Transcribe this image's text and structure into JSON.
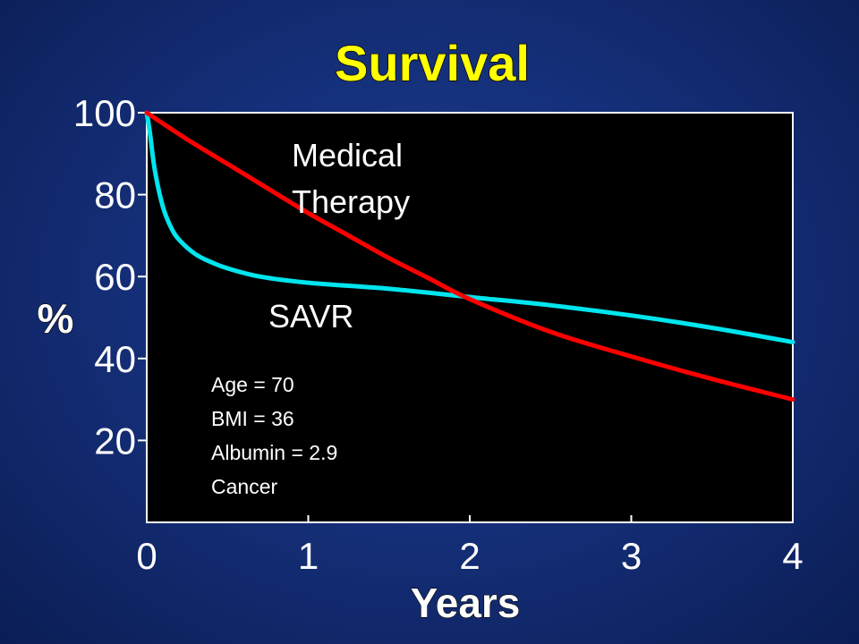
{
  "chart_data": {
    "type": "line",
    "title": "Survival",
    "xlabel": "Years",
    "ylabel": "%",
    "xlim": [
      0,
      4
    ],
    "ylim": [
      0,
      100
    ],
    "x_ticks": [
      "0",
      "1",
      "2",
      "3",
      "4"
    ],
    "y_ticks": [
      "100",
      "80",
      "60",
      "40",
      "20"
    ],
    "grid": false,
    "background": "#000000",
    "series": [
      {
        "name": "Medical Therapy",
        "color": "#ff0000",
        "x": [
          0,
          0.25,
          0.5,
          0.75,
          1,
          1.25,
          1.5,
          1.75,
          2,
          2.5,
          3,
          3.5,
          4
        ],
        "y": [
          100,
          93.5,
          87.5,
          81.5,
          75.5,
          70,
          64.5,
          59.5,
          54.5,
          46.5,
          40.5,
          35,
          30
        ]
      },
      {
        "name": "SAVR",
        "color": "#00e5ee",
        "x": [
          0,
          0.02,
          0.05,
          0.1,
          0.15,
          0.2,
          0.3,
          0.4,
          0.5,
          0.7,
          1,
          1.5,
          2,
          2.5,
          3,
          3.5,
          4
        ],
        "y": [
          100,
          95,
          86,
          77,
          72,
          69,
          65.5,
          63.5,
          62,
          60,
          58.5,
          57,
          55,
          53,
          50.5,
          47.5,
          44
        ]
      }
    ],
    "series_labels": [
      "Medical",
      "Therapy",
      "SAVR"
    ],
    "annotation": [
      "Age = 70",
      "BMI = 36",
      "Albumin = 2.9",
      "Cancer"
    ]
  }
}
